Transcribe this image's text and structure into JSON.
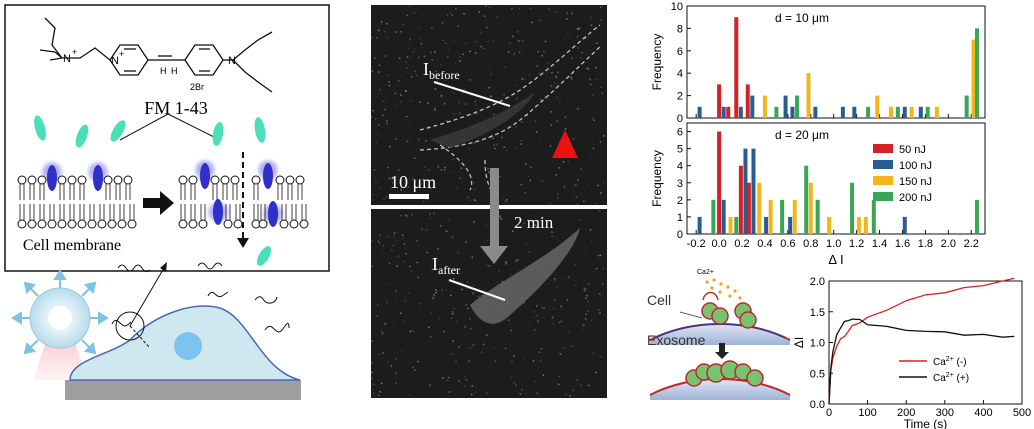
{
  "left_panel": {
    "molecule_counterion": "2Br",
    "molecule_charge": "+",
    "dye_name": "FM 1-43",
    "membrane_label": "Cell membrane"
  },
  "middle_panel": {
    "label_before_main": "I",
    "label_before_sub": "before",
    "label_after_main": "I",
    "label_after_sub": "after",
    "scalebar_label": "10 μm",
    "time_label": "2 min"
  },
  "colors": {
    "50nJ": "#d62027",
    "100nJ": "#2a5d8f",
    "150nJ": "#f2b61c",
    "200nJ": "#3aa655",
    "ca_minus": "#e0201f",
    "ca_plus": "#111111"
  },
  "schema_labels": {
    "cell": "Cell",
    "exosome": "Exosome",
    "ca_ion": "Ca2+"
  },
  "chart_data": [
    {
      "type": "bar",
      "title": "d = 10 μm",
      "ylabel": "Frequency",
      "ylim": [
        0,
        10
      ],
      "yticks": [
        "0",
        "2",
        "4",
        "6",
        "8",
        "10"
      ],
      "bars": [
        {
          "x": -0.17,
          "s": "100nJ",
          "v": 1
        },
        {
          "x": 0.0,
          "s": "50nJ",
          "v": 3
        },
        {
          "x": 0.04,
          "s": "100nJ",
          "v": 1
        },
        {
          "x": 0.08,
          "s": "50nJ",
          "v": 1
        },
        {
          "x": 0.15,
          "s": "50nJ",
          "v": 9
        },
        {
          "x": 0.19,
          "s": "100nJ",
          "v": 1
        },
        {
          "x": 0.25,
          "s": "50nJ",
          "v": 3
        },
        {
          "x": 0.29,
          "s": "100nJ",
          "v": 2
        },
        {
          "x": 0.4,
          "s": "150nJ",
          "v": 2
        },
        {
          "x": 0.5,
          "s": "200nJ",
          "v": 1
        },
        {
          "x": 0.58,
          "s": "100nJ",
          "v": 2
        },
        {
          "x": 0.64,
          "s": "100nJ",
          "v": 1
        },
        {
          "x": 0.68,
          "s": "200nJ",
          "v": 2
        },
        {
          "x": 0.78,
          "s": "150nJ",
          "v": 4
        },
        {
          "x": 0.84,
          "s": "100nJ",
          "v": 1
        },
        {
          "x": 1.08,
          "s": "100nJ",
          "v": 1
        },
        {
          "x": 1.18,
          "s": "100nJ",
          "v": 1
        },
        {
          "x": 1.3,
          "s": "200nJ",
          "v": 1
        },
        {
          "x": 1.38,
          "s": "150nJ",
          "v": 2
        },
        {
          "x": 1.5,
          "s": "150nJ",
          "v": 1
        },
        {
          "x": 1.56,
          "s": "200nJ",
          "v": 1
        },
        {
          "x": 1.62,
          "s": "100nJ",
          "v": 1
        },
        {
          "x": 1.68,
          "s": "150nJ",
          "v": 1
        },
        {
          "x": 1.76,
          "s": "100nJ",
          "v": 1
        },
        {
          "x": 1.82,
          "s": "200nJ",
          "v": 1
        },
        {
          "x": 1.9,
          "s": "150nJ",
          "v": 1
        },
        {
          "x": 2.16,
          "s": "200nJ",
          "v": 2
        },
        {
          "x": 2.22,
          "s": "150nJ",
          "v": 7
        },
        {
          "x": 2.25,
          "s": "200nJ",
          "v": 8
        }
      ]
    },
    {
      "type": "bar",
      "title": "d = 20 μm",
      "ylabel": "Frequency",
      "xlabel": "Δ I",
      "ylim": [
        0,
        6.5
      ],
      "xlim": [
        -0.28,
        2.32
      ],
      "xticks": [
        "-0.2",
        "0.0",
        "0.2",
        "0.4",
        "0.6",
        "0.8",
        "1.0",
        "1.2",
        "1.4",
        "1.6",
        "1.8",
        "2.0",
        "2.2"
      ],
      "yticks": [
        "0",
        "1",
        "2",
        "3",
        "4",
        "5",
        "6"
      ],
      "legend": [
        "50 nJ",
        "100 nJ",
        "150 nJ",
        "200 nJ"
      ],
      "legend_keys": [
        "50nJ",
        "100nJ",
        "150nJ",
        "200nJ"
      ],
      "bars": [
        {
          "x": -0.17,
          "s": "100nJ",
          "v": 1
        },
        {
          "x": -0.05,
          "s": "200nJ",
          "v": 2
        },
        {
          "x": 0.0,
          "s": "50nJ",
          "v": 6
        },
        {
          "x": 0.04,
          "s": "100nJ",
          "v": 2
        },
        {
          "x": 0.1,
          "s": "150nJ",
          "v": 1
        },
        {
          "x": 0.15,
          "s": "200nJ",
          "v": 1
        },
        {
          "x": 0.19,
          "s": "50nJ",
          "v": 4
        },
        {
          "x": 0.23,
          "s": "100nJ",
          "v": 5
        },
        {
          "x": 0.26,
          "s": "50nJ",
          "v": 3
        },
        {
          "x": 0.3,
          "s": "100nJ",
          "v": 5
        },
        {
          "x": 0.35,
          "s": "150nJ",
          "v": 3
        },
        {
          "x": 0.41,
          "s": "100nJ",
          "v": 1
        },
        {
          "x": 0.45,
          "s": "150nJ",
          "v": 2
        },
        {
          "x": 0.55,
          "s": "200nJ",
          "v": 2
        },
        {
          "x": 0.62,
          "s": "100nJ",
          "v": 1
        },
        {
          "x": 0.66,
          "s": "150nJ",
          "v": 2
        },
        {
          "x": 0.76,
          "s": "200nJ",
          "v": 4
        },
        {
          "x": 0.8,
          "s": "150nJ",
          "v": 3
        },
        {
          "x": 0.86,
          "s": "200nJ",
          "v": 2
        },
        {
          "x": 0.96,
          "s": "150nJ",
          "v": 1
        },
        {
          "x": 1.16,
          "s": "200nJ",
          "v": 3
        },
        {
          "x": 1.22,
          "s": "150nJ",
          "v": 1
        },
        {
          "x": 1.28,
          "s": "150nJ",
          "v": 1
        },
        {
          "x": 1.35,
          "s": "200nJ",
          "v": 2
        },
        {
          "x": 1.62,
          "s": "100nJ",
          "v": 1
        },
        {
          "x": 2.25,
          "s": "200nJ",
          "v": 2
        }
      ]
    },
    {
      "type": "line",
      "ylabel": "ΔI",
      "xlabel": "Time (s)",
      "xlim": [
        0,
        500
      ],
      "ylim": [
        0,
        2.0
      ],
      "xticks": [
        "0",
        "100",
        "200",
        "300",
        "400",
        "500"
      ],
      "yticks": [
        "0.0",
        "0.5",
        "1.0",
        "1.5",
        "2.0"
      ],
      "series": [
        {
          "name": "Ca2+ (-)",
          "color_key": "ca_minus",
          "x": [
            0,
            5,
            10,
            20,
            30,
            40,
            50,
            60,
            80,
            100,
            150,
            200,
            250,
            300,
            350,
            400,
            450,
            480
          ],
          "y": [
            0,
            0.55,
            0.75,
            0.95,
            1.05,
            1.12,
            1.18,
            1.25,
            1.33,
            1.4,
            1.55,
            1.68,
            1.75,
            1.82,
            1.88,
            1.95,
            2.0,
            2.02
          ]
        },
        {
          "name": "Ca2+ (+)",
          "color_key": "ca_plus",
          "x": [
            0,
            5,
            10,
            20,
            30,
            40,
            50,
            60,
            80,
            100,
            150,
            200,
            250,
            300,
            350,
            400,
            450,
            480
          ],
          "y": [
            0,
            0.6,
            0.85,
            1.1,
            1.25,
            1.33,
            1.38,
            1.38,
            1.35,
            1.3,
            1.25,
            1.22,
            1.18,
            1.15,
            1.13,
            1.12,
            1.11,
            1.1
          ]
        }
      ]
    }
  ]
}
